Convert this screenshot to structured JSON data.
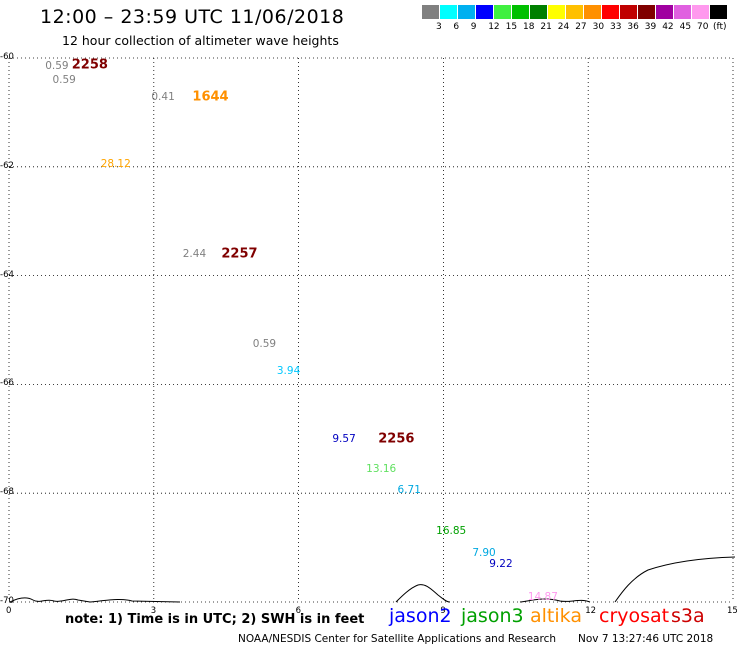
{
  "header": {
    "title": "12:00 – 23:59 UTC 11/06/2018",
    "subtitle": "12 hour collection of altimeter wave heights"
  },
  "legend": {
    "colors": [
      "#808080",
      "#00ffff",
      "#00b0f0",
      "#0000ff",
      "#40f040",
      "#00c000",
      "#008000",
      "#ffff00",
      "#ffc000",
      "#ff9000",
      "#ff0000",
      "#c00000",
      "#800000",
      "#a000a0",
      "#e060e0",
      "#ff99ee",
      "#000000"
    ],
    "ticks": [
      "3",
      "6",
      "9",
      "12",
      "15",
      "18",
      "21",
      "24",
      "27",
      "30",
      "33",
      "36",
      "39",
      "42",
      "45",
      "70"
    ],
    "units": "(ft)"
  },
  "map": {
    "lat_labels": [
      "-60",
      "-62",
      "-64",
      "-66",
      "-68",
      "-70"
    ],
    "lon_labels": [
      "0",
      "3",
      "6",
      "9",
      "12",
      "15"
    ],
    "lat_range": [
      -70,
      -60
    ],
    "lon_range": [
      0,
      15
    ],
    "grid": "dotted"
  },
  "observations": [
    {
      "text": "0.59",
      "color": "#808080",
      "lon": 0.75,
      "lat": -60.15
    },
    {
      "text": "0.59",
      "color": "#808080",
      "lon": 0.9,
      "lat": -60.4
    },
    {
      "text": "0.41",
      "color": "#808080",
      "lon": 2.95,
      "lat": -60.72
    },
    {
      "text": "28.12",
      "color": "#ffa500",
      "lon": 1.9,
      "lat": -61.95
    },
    {
      "text": "2.44",
      "color": "#808080",
      "lon": 3.6,
      "lat": -63.6
    },
    {
      "text": "0.59",
      "color": "#808080",
      "lon": 5.05,
      "lat": -65.25
    },
    {
      "text": "3.94",
      "color": "#00c8ff",
      "lon": 5.55,
      "lat": -65.75
    },
    {
      "text": "9.57",
      "color": "#0000c0",
      "lon": 6.7,
      "lat": -67.0
    },
    {
      "text": "13.16",
      "color": "#60e060",
      "lon": 7.4,
      "lat": -67.55
    },
    {
      "text": "6.71",
      "color": "#00a8e0",
      "lon": 8.05,
      "lat": -67.95
    },
    {
      "text": "16.85",
      "color": "#00a000",
      "lon": 8.85,
      "lat": -68.7
    },
    {
      "text": "7.90",
      "color": "#00a8e0",
      "lon": 9.6,
      "lat": -69.1
    },
    {
      "text": "9.22",
      "color": "#0000c0",
      "lon": 9.95,
      "lat": -69.3
    },
    {
      "text": "14.87",
      "color": "#ff99ee",
      "lon": 10.75,
      "lat": -69.9
    }
  ],
  "pass_times": [
    {
      "text": "2258",
      "color": "#800000",
      "lon": 1.3,
      "lat": -60.13
    },
    {
      "text": "1644",
      "color": "#ff9000",
      "lon": 3.8,
      "lat": -60.72
    },
    {
      "text": "2257",
      "color": "#800000",
      "lon": 4.4,
      "lat": -63.6
    },
    {
      "text": "2256",
      "color": "#800000",
      "lon": 7.65,
      "lat": -67.0
    }
  ],
  "footer": {
    "note": "note: 1) Time is in UTC; 2) SWH is in feet",
    "missions": [
      {
        "name": "jason2",
        "color": "#0000ff"
      },
      {
        "name": "jason3",
        "color": "#00a000"
      },
      {
        "name": "altika",
        "color": "#ff9000"
      },
      {
        "name": "cryosat",
        "color": "#ff0000"
      },
      {
        "name": "s3a",
        "color": "#cc0000"
      }
    ],
    "credit": "NOAA/NESDIS Center for Satellite Applications and Research",
    "timestamp": "Nov  7 13:27:46 UTC 2018"
  }
}
